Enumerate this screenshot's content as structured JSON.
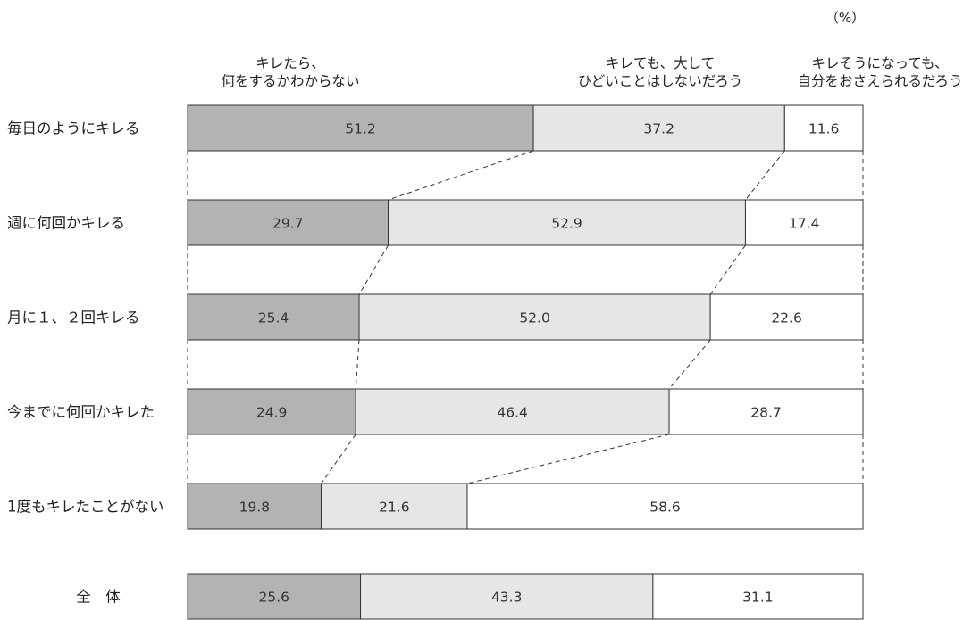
{
  "chart_data": {
    "type": "bar",
    "stacked": true,
    "orientation": "horizontal",
    "unit": "（%）",
    "categories": [
      "毎日のようにキレる",
      "週に何回かキレる",
      "月に１、２回キレる",
      "今までに何回かキレた",
      "1度もキレたことがない",
      "全　体"
    ],
    "series": [
      {
        "name": [
          "キレたら、",
          "何をするかわからない"
        ],
        "values": [
          51.2,
          29.7,
          25.4,
          24.9,
          19.8,
          25.6
        ],
        "color": "#b3b3b3"
      },
      {
        "name": [
          "キレても、大して",
          "ひどいことはしないだろう"
        ],
        "values": [
          37.2,
          52.9,
          52.0,
          46.4,
          21.6,
          43.3
        ],
        "color": "#e6e6e6"
      },
      {
        "name": [
          "キレそうになっても、",
          "自分をおさえられるだろう"
        ],
        "values": [
          11.6,
          17.4,
          22.6,
          28.7,
          58.6,
          31.1
        ],
        "color": "#ffffff"
      }
    ],
    "connector_lines": "dashed",
    "xlim": [
      0,
      100
    ]
  }
}
